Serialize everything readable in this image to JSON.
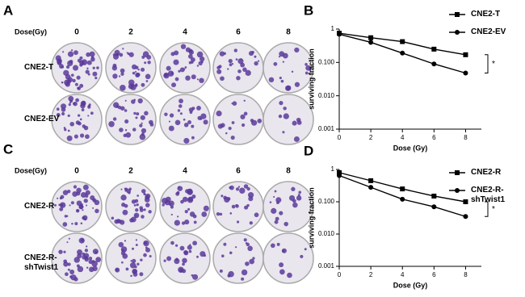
{
  "figure": {
    "panels": [
      {
        "label": "A",
        "dose_label": "Dose(Gy)",
        "doses": [
          0,
          2,
          4,
          6,
          8
        ],
        "rows": [
          "CNE2-T",
          "CNE2-EV"
        ]
      },
      {
        "label": "C",
        "dose_label": "Dose(Gy)",
        "doses": [
          0,
          2,
          4,
          6,
          8
        ],
        "rows": [
          "CNE2-R",
          "CNE2-R-shTwist1"
        ]
      }
    ]
  },
  "chart_data": [
    {
      "type": "line",
      "panel_label": "B",
      "ylabel": "surviving fraction",
      "xlabel": "Dose (Gy)",
      "log_y": true,
      "x": [
        0,
        2,
        4,
        6,
        8
      ],
      "xlim": [
        0,
        9
      ],
      "xticks": [
        0,
        2,
        4,
        6,
        8
      ],
      "ylim": [
        0.001,
        1
      ],
      "yticks": [
        1,
        {
          "value": 0.1,
          "label": "0.100"
        },
        {
          "value": 0.01,
          "label": "0.010"
        },
        0.001
      ],
      "annotation": "*",
      "series": [
        {
          "name": "CNE2-T",
          "color": "#000000",
          "marker": "square",
          "values": [
            0.75,
            0.55,
            0.42,
            0.25,
            0.17
          ]
        },
        {
          "name": "CNE2-EV",
          "color": "#000000",
          "marker": "circle",
          "values": [
            0.7,
            0.4,
            0.19,
            0.09,
            0.048
          ]
        }
      ]
    },
    {
      "type": "line",
      "panel_label": "D",
      "ylabel": "surviving fraction",
      "xlabel": "Dose (Gy)",
      "log_y": true,
      "x": [
        0,
        2,
        4,
        6,
        8
      ],
      "xlim": [
        0,
        9
      ],
      "xticks": [
        0,
        2,
        4,
        6,
        8
      ],
      "ylim": [
        0.001,
        1
      ],
      "yticks": [
        1,
        {
          "value": 0.1,
          "label": "0.100"
        },
        {
          "value": 0.01,
          "label": "0.010"
        },
        0.001
      ],
      "annotation": "*",
      "series": [
        {
          "name": "CNE2-R",
          "color": "#000000",
          "marker": "square",
          "values": [
            0.8,
            0.45,
            0.25,
            0.15,
            0.1
          ]
        },
        {
          "name": "CNE2-R-shTwist1",
          "color": "#000000",
          "marker": "circle",
          "values": [
            0.65,
            0.28,
            0.12,
            0.07,
            0.035
          ]
        }
      ]
    }
  ]
}
